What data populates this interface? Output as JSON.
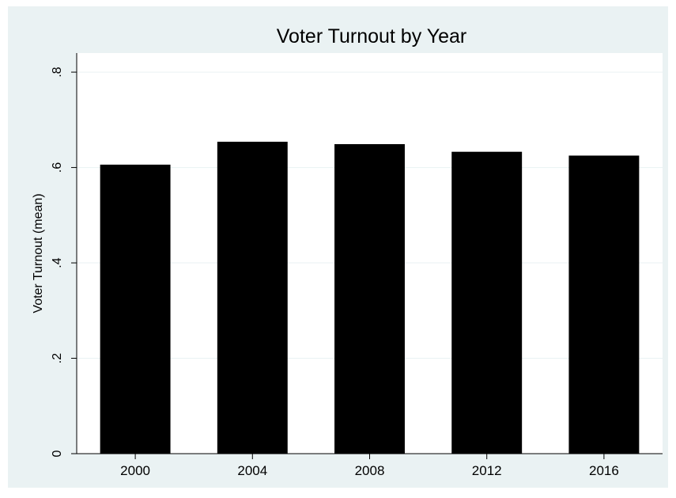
{
  "chart_data": {
    "type": "bar",
    "title": "Voter Turnout by Year",
    "xlabel": "",
    "ylabel": "Voter Turnout (mean)",
    "categories": [
      "2000",
      "2004",
      "2008",
      "2012",
      "2016"
    ],
    "values": [
      0.606,
      0.654,
      0.649,
      0.633,
      0.625
    ],
    "ylim": [
      0,
      0.84
    ],
    "yticks": [
      0,
      0.2,
      0.4,
      0.6,
      0.8
    ],
    "ytick_labels": [
      "0",
      ".2",
      ".4",
      ".6",
      ".8"
    ],
    "grid": "horizontal",
    "legend": "none",
    "colors": {
      "outer_background": "#eaf2f3",
      "plot_background": "#ffffff",
      "bar": "#000000",
      "gridline": "#eaf2f3",
      "text": "#000000"
    }
  }
}
